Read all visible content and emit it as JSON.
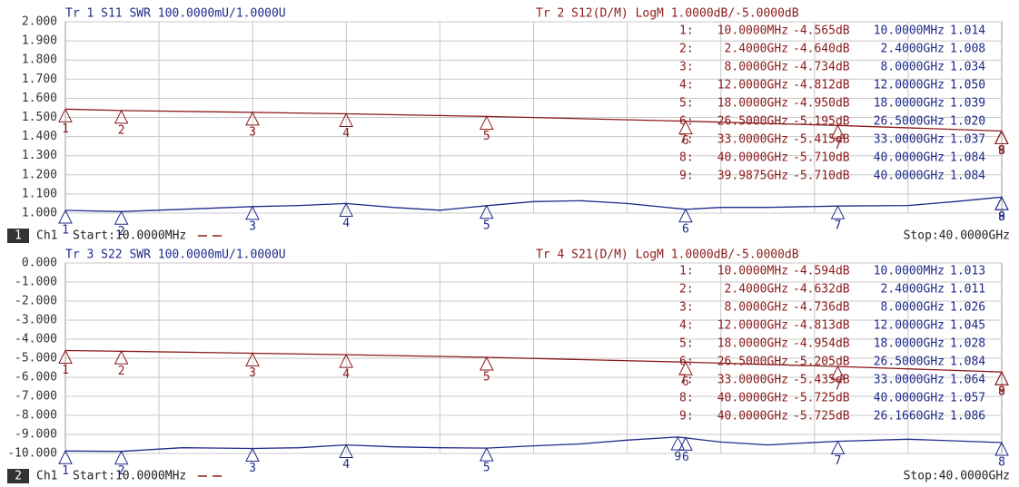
{
  "chart_data": [
    {
      "type": "line",
      "channel_number": "1",
      "channel": "Ch1",
      "start": "Start:10.0000MHz",
      "stop": "Stop:40.0000GHz",
      "xlim": [
        0.01,
        40
      ],
      "ylim": [
        1,
        2
      ],
      "y2lim": [
        -10,
        0
      ],
      "grid": true,
      "yticks": [
        {
          "value": 1,
          "label": "1.000"
        },
        {
          "value": 1.1,
          "label": "1.100"
        },
        {
          "value": 1.2,
          "label": "1.200"
        },
        {
          "value": 1.3,
          "label": "1.300"
        },
        {
          "value": 1.4,
          "label": "1.400"
        },
        {
          "value": 1.5,
          "label": "1.500"
        },
        {
          "value": 1.6,
          "label": "1.600"
        },
        {
          "value": 1.7,
          "label": "1.700"
        },
        {
          "value": 1.8,
          "label": "1.800"
        },
        {
          "value": 1.9,
          "label": "1.900"
        },
        {
          "value": 2,
          "label": "2.000"
        }
      ],
      "marker_rows": [
        "1:",
        "2:",
        "3:",
        "4:",
        "5:",
        "6:",
        "7:",
        "8:",
        "9:"
      ],
      "series": [
        {
          "name": "Tr 1  S11 SWR 100.0000mU/1.0000U",
          "color": "#1f2a8a",
          "x": [
            0.01,
            2.4,
            5,
            8,
            10,
            12,
            14,
            16,
            18,
            20,
            22,
            24,
            26.5,
            28,
            30,
            33,
            36,
            38,
            40
          ],
          "values": [
            1.014,
            1.008,
            1.02,
            1.034,
            1.04,
            1.05,
            1.03,
            1.015,
            1.039,
            1.06,
            1.065,
            1.05,
            1.02,
            1.03,
            1.03,
            1.037,
            1.04,
            1.06,
            1.084
          ],
          "marker_labels": [
            "1",
            "2",
            "3",
            "4",
            "5",
            "6",
            "7",
            "8",
            "9"
          ],
          "marker_x": [
            0.01,
            2.4,
            8,
            12,
            18,
            26.5,
            33,
            40,
            40
          ],
          "marker_x_labels": [
            "10.0000MHz",
            "2.4000GHz",
            "8.0000GHz",
            "12.0000GHz",
            "18.0000GHz",
            "26.5000GHz",
            "33.0000GHz",
            "40.0000GHz",
            "40.0000GHz"
          ],
          "marker_values": [
            1.014,
            1.008,
            1.034,
            1.05,
            1.039,
            1.02,
            1.037,
            1.084,
            1.084
          ],
          "marker_value_labels": [
            "1.014",
            "1.008",
            "1.034",
            "1.050",
            "1.039",
            "1.020",
            "1.037",
            "1.084",
            "1.084"
          ]
        },
        {
          "name": "Tr 2  S12(D/M) LogM 1.0000dB/-5.0000dB",
          "color": "#8b1a1a",
          "axis": "y2",
          "x": [
            0.01,
            2.4,
            8,
            12,
            18,
            26.5,
            33,
            40
          ],
          "values": [
            -4.565,
            -4.64,
            -4.734,
            -4.812,
            -4.95,
            -5.195,
            -5.415,
            -5.71
          ],
          "marker_labels": [
            "1",
            "2",
            "3",
            "4",
            "5",
            "6",
            "7",
            "8",
            "9"
          ],
          "marker_x": [
            0.01,
            2.4,
            8,
            12,
            18,
            26.5,
            33,
            40,
            39.9875
          ],
          "marker_x_labels": [
            "10.0000MHz",
            "2.4000GHz",
            "8.0000GHz",
            "12.0000GHz",
            "18.0000GHz",
            "26.5000GHz",
            "33.0000GHz",
            "40.0000GHz",
            "39.9875GHz"
          ],
          "marker_values": [
            -4.565,
            -4.64,
            -4.734,
            -4.812,
            -4.95,
            -5.195,
            -5.415,
            -5.71,
            -5.71
          ],
          "marker_value_labels": [
            "-4.565dB",
            "-4.640dB",
            "-4.734dB",
            "-4.812dB",
            "-4.950dB",
            "-5.195dB",
            "-5.415dB",
            "-5.710dB",
            "-5.710dB"
          ]
        }
      ]
    },
    {
      "type": "line",
      "channel_number": "2",
      "channel": "Ch1",
      "start": "Start:10.0000MHz",
      "stop": "Stop:40.0000GHz",
      "xlim": [
        0.01,
        40
      ],
      "ylim": [
        -10,
        0
      ],
      "y2lim": [
        1,
        2
      ],
      "grid": true,
      "yticks": [
        {
          "value": -10,
          "label": "-10.000"
        },
        {
          "value": -9,
          "label": "-9.000"
        },
        {
          "value": -8,
          "label": "-8.000"
        },
        {
          "value": -7,
          "label": "-7.000"
        },
        {
          "value": -6,
          "label": "-6.000"
        },
        {
          "value": -5,
          "label": "-5.000"
        },
        {
          "value": -4,
          "label": "-4.000"
        },
        {
          "value": -3,
          "label": "-3.000"
        },
        {
          "value": -2,
          "label": "-2.000"
        },
        {
          "value": -1,
          "label": "-1.000"
        },
        {
          "value": 0,
          "label": "0.000"
        }
      ],
      "marker_rows": [
        "1:",
        "2:",
        "3:",
        "4:",
        "5:",
        "6:",
        "7:",
        "8:",
        "9:"
      ],
      "series": [
        {
          "name": "Tr 3  S22 SWR 100.0000mU/1.0000U",
          "color": "#1f2a8a",
          "axis": "y2",
          "x": [
            0.01,
            2.4,
            5,
            8,
            10,
            12,
            14,
            16,
            18,
            20,
            22,
            24,
            26.166,
            28,
            30,
            33,
            36,
            40
          ],
          "values": [
            1.013,
            1.011,
            1.03,
            1.026,
            1.03,
            1.045,
            1.035,
            1.03,
            1.028,
            1.04,
            1.05,
            1.07,
            1.086,
            1.06,
            1.045,
            1.064,
            1.075,
            1.057
          ],
          "marker_labels": [
            "1",
            "2",
            "3",
            "4",
            "5",
            "6",
            "7",
            "8",
            "9"
          ],
          "marker_x": [
            0.01,
            2.4,
            8,
            12,
            18,
            26.5,
            33,
            40,
            26.166
          ],
          "marker_x_labels": [
            "10.0000MHz",
            "2.4000GHz",
            "8.0000GHz",
            "12.0000GHz",
            "18.0000GHz",
            "26.5000GHz",
            "33.0000GHz",
            "40.0000GHz",
            "26.1660GHz"
          ],
          "marker_values": [
            1.013,
            1.011,
            1.026,
            1.045,
            1.028,
            1.084,
            1.064,
            1.057,
            1.086
          ],
          "marker_value_labels": [
            "1.013",
            "1.011",
            "1.026",
            "1.045",
            "1.028",
            "1.084",
            "1.064",
            "1.057",
            "1.086"
          ]
        },
        {
          "name": "Tr 4  S21(D/M) LogM 1.0000dB/-5.0000dB",
          "color": "#8b1a1a",
          "x": [
            0.01,
            2.4,
            8,
            12,
            18,
            26.5,
            33,
            40
          ],
          "values": [
            -4.594,
            -4.632,
            -4.736,
            -4.813,
            -4.954,
            -5.205,
            -5.435,
            -5.725
          ],
          "marker_labels": [
            "1",
            "2",
            "3",
            "4",
            "5",
            "6",
            "7",
            "8",
            "9"
          ],
          "marker_x": [
            0.01,
            2.4,
            8,
            12,
            18,
            26.5,
            33,
            40,
            40
          ],
          "marker_x_labels": [
            "10.0000MHz",
            "2.4000GHz",
            "8.0000GHz",
            "12.0000GHz",
            "18.0000GHz",
            "26.5000GHz",
            "33.0000GHz",
            "40.0000GHz",
            "40.0000GHz"
          ],
          "marker_values": [
            -4.594,
            -4.632,
            -4.736,
            -4.813,
            -4.954,
            -5.205,
            -5.435,
            -5.725,
            -5.725
          ],
          "marker_value_labels": [
            "-4.594dB",
            "-4.632dB",
            "-4.736dB",
            "-4.813dB",
            "-4.954dB",
            "-5.205dB",
            "-5.435dB",
            "-5.725dB",
            "-5.725dB"
          ]
        }
      ]
    }
  ]
}
